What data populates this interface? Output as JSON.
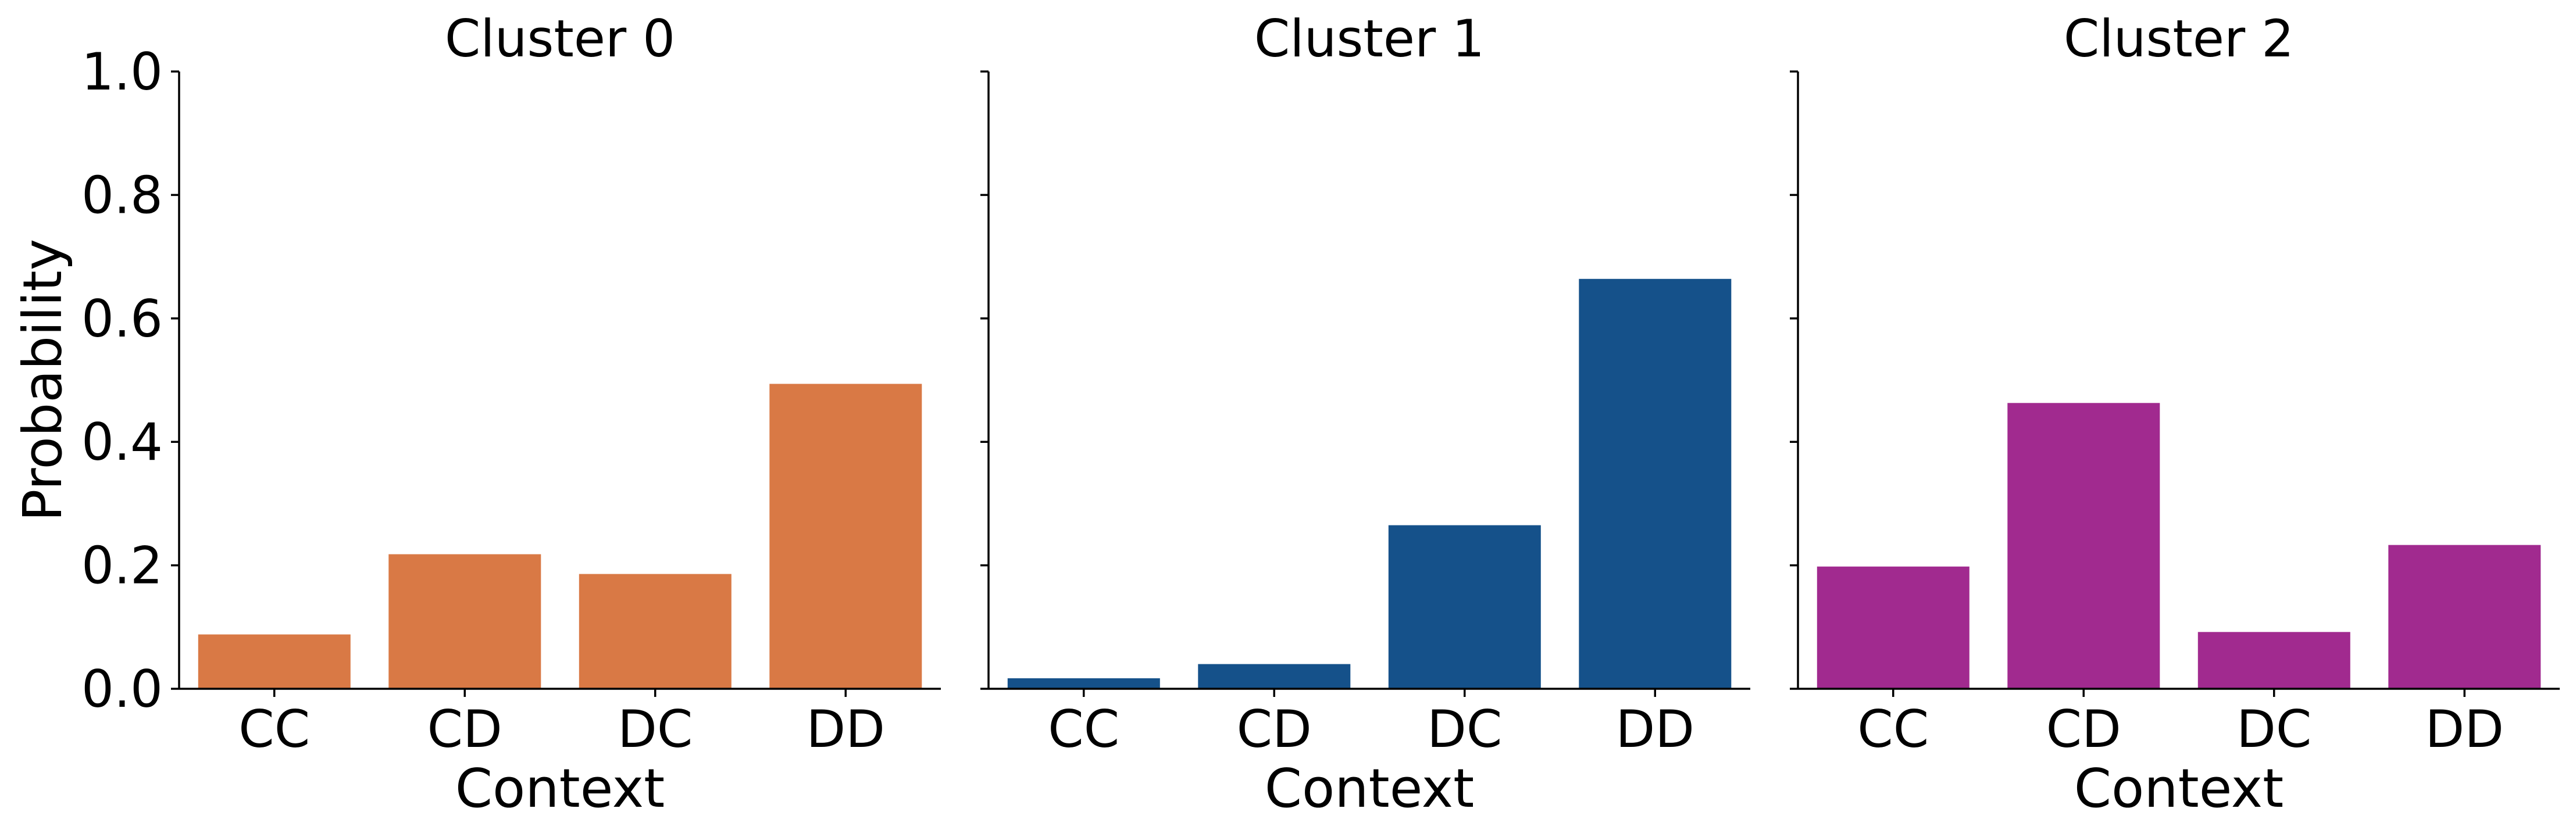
{
  "chart_data": {
    "type": "bar",
    "ylabel": "Probability",
    "xlabel": "Context",
    "ylim": [
      0,
      1.0
    ],
    "yticks": [
      "0.0",
      "0.2",
      "0.4",
      "0.6",
      "0.8",
      "1.0"
    ],
    "shared_y": true,
    "grid": false,
    "categories": [
      "CC",
      "CD",
      "DC",
      "DD"
    ],
    "panels": [
      {
        "title": "Cluster 0",
        "color": "#D97945",
        "values": [
          0.088,
          0.218,
          0.186,
          0.494
        ]
      },
      {
        "title": "Cluster 1",
        "color": "#15518A",
        "values": [
          0.017,
          0.04,
          0.265,
          0.664
        ]
      },
      {
        "title": "Cluster 2",
        "color": "#A12A8F",
        "values": [
          0.198,
          0.463,
          0.092,
          0.233
        ]
      }
    ]
  }
}
